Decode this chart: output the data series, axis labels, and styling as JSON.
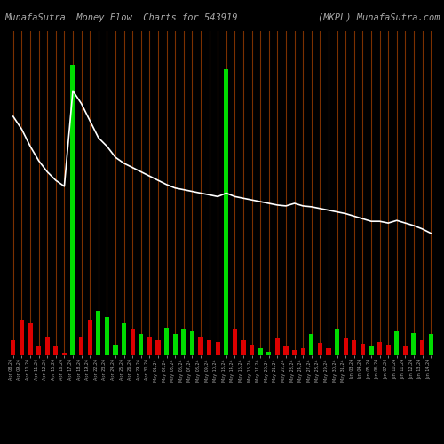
{
  "title_left": "MunafaSutra  Money Flow  Charts for 543919",
  "title_right": "(MKPL) MunafaSutra.com",
  "bg_color": "#000000",
  "bar_colors_pattern": [
    "red",
    "red",
    "red",
    "red",
    "red",
    "red",
    "red",
    "green",
    "red",
    "red",
    "green",
    "green",
    "green",
    "green",
    "red",
    "green",
    "red",
    "red",
    "green",
    "green",
    "green",
    "green",
    "red",
    "red",
    "red",
    "green",
    "red",
    "red",
    "red",
    "green",
    "green",
    "red",
    "red",
    "red",
    "red",
    "green",
    "red",
    "red",
    "green",
    "red",
    "red",
    "red",
    "green",
    "red",
    "red",
    "green",
    "red",
    "green",
    "red",
    "green"
  ],
  "bar_heights": [
    18,
    42,
    38,
    10,
    22,
    10,
    2,
    340,
    22,
    42,
    52,
    45,
    12,
    38,
    30,
    25,
    22,
    18,
    32,
    25,
    30,
    28,
    22,
    18,
    16,
    335,
    30,
    18,
    12,
    8,
    4,
    20,
    10,
    6,
    8,
    25,
    15,
    8,
    30,
    20,
    18,
    14,
    10,
    16,
    12,
    28,
    10,
    26,
    18,
    25
  ],
  "line_values": [
    280,
    265,
    245,
    228,
    215,
    205,
    198,
    310,
    295,
    275,
    255,
    245,
    232,
    225,
    220,
    215,
    210,
    205,
    200,
    196,
    194,
    192,
    190,
    188,
    186,
    190,
    186,
    184,
    182,
    180,
    178,
    176,
    175,
    178,
    175,
    174,
    172,
    170,
    168,
    166,
    163,
    160,
    157,
    157,
    155,
    158,
    155,
    152,
    148,
    143
  ],
  "vline_color": "#7B3000",
  "line_color": "#ffffff",
  "green_color": "#00dd00",
  "red_color": "#dd0000",
  "tick_color": "#aaaaaa",
  "title_color": "#aaaaaa",
  "title_fontsize": 7.5,
  "x_labels": [
    "Apr 08,24",
    "Apr 09,24",
    "Apr 10,24",
    "Apr 11,24",
    "Apr 12,24",
    "Apr 15,24",
    "Apr 16,24",
    "Apr 17,24",
    "Apr 18,24",
    "Apr 19,24",
    "Apr 22,24",
    "Apr 23,24",
    "Apr 24,24",
    "Apr 25,24",
    "Apr 26,24",
    "Apr 29,24",
    "Apr 30,24",
    "May 01,24",
    "May 02,24",
    "May 03,24",
    "May 06,24",
    "May 07,24",
    "May 08,24",
    "May 09,24",
    "May 10,24",
    "May 13,24",
    "May 14,24",
    "May 15,24",
    "May 16,24",
    "May 17,24",
    "May 20,24",
    "May 21,24",
    "May 22,24",
    "May 23,24",
    "May 24,24",
    "May 27,24",
    "May 28,24",
    "May 29,24",
    "May 30,24",
    "May 31,24",
    "Jun 03,24",
    "Jun 04,24",
    "Jun 05,24",
    "Jun 06,24",
    "Jun 07,24",
    "Jun 10,24",
    "Jun 11,24",
    "Jun 12,24",
    "Jun 13,24",
    "Jun 14,24"
  ],
  "ylim_max": 380,
  "figsize": [
    5.0,
    5.0
  ],
  "dpi": 100
}
